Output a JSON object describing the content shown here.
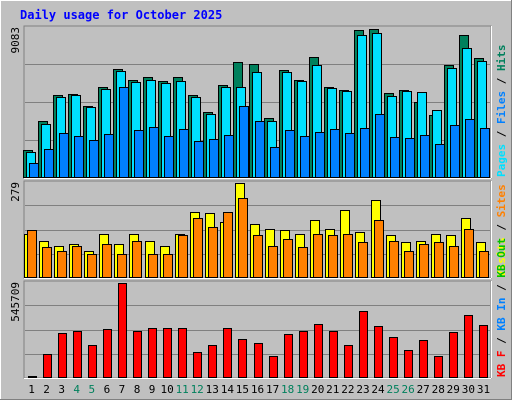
{
  "colors": {
    "background": "#c0c0c0",
    "title": "#0000ff",
    "grid": "#808080",
    "hits": "#00805c",
    "files": "#00e0ff",
    "pages": "#0080ff",
    "visits": "#ffff00",
    "sites": "#ff8000",
    "kb_in": "#ff0000",
    "weekend_label": "#00805c",
    "weekday_label": "#000000"
  },
  "chart_data": {
    "type": "bar",
    "title": "Daily usage for October 2025",
    "grid": true,
    "categories": [
      "1",
      "2",
      "3",
      "4",
      "5",
      "6",
      "7",
      "8",
      "9",
      "10",
      "11",
      "12",
      "13",
      "14",
      "15",
      "16",
      "17",
      "18",
      "19",
      "20",
      "21",
      "22",
      "23",
      "24",
      "25",
      "26",
      "27",
      "28",
      "29",
      "30",
      "31"
    ],
    "weekend_days": [
      "4",
      "5",
      "11",
      "12",
      "18",
      "19",
      "25",
      "26"
    ],
    "panels": [
      {
        "id": "traffic",
        "ymax_label": "9083",
        "ymax": 9083,
        "side_labels": [
          {
            "text": "Pages",
            "color": "#00e0ff"
          },
          {
            "text": " / ",
            "color": "#000000"
          },
          {
            "text": "Files",
            "color": "#0080ff"
          },
          {
            "text": " / ",
            "color": "#000000"
          },
          {
            "text": "Hits",
            "color": "#00805c"
          }
        ],
        "series": [
          {
            "name": "Hits",
            "color": "#00805c",
            "values": [
              1680,
              3460,
              5050,
              5080,
              4380,
              5520,
              6620,
              5920,
              6090,
              5860,
              6110,
              5020,
              4020,
              5630,
              7000,
              6900,
              3650,
              6550,
              5960,
              7350,
              5530,
              5350,
              8950,
              9000,
              5140,
              5340,
              4580,
              3800,
              6840,
              8650,
              7270
            ]
          },
          {
            "name": "Files",
            "color": "#00e0ff",
            "values": [
              1580,
              3300,
              4900,
              5050,
              4300,
              5400,
              6450,
              5800,
              5910,
              5750,
              5860,
              4880,
              3870,
              5500,
              5500,
              6400,
              3450,
              6400,
              5880,
              6850,
              5450,
              5250,
              8680,
              8750,
              4960,
              5250,
              5180,
              4130,
              6660,
              7900,
              7100
            ]
          },
          {
            "name": "Pages",
            "color": "#0080ff",
            "values": [
              900,
              1770,
              2700,
              2520,
              2290,
              2640,
              5500,
              2900,
              3100,
              2550,
              2950,
              2250,
              2380,
              2630,
              4380,
              3450,
              1850,
              2890,
              2520,
              2780,
              2970,
              2720,
              3050,
              3850,
              2480,
              2430,
              2580,
              2080,
              3220,
              3560,
              3030
            ]
          }
        ]
      },
      {
        "id": "visitors",
        "ymax_label": "279",
        "ymax": 279,
        "side_labels": [
          {
            "text": "Visits",
            "color": "#ffff00"
          },
          {
            "text": " / ",
            "color": "#000000"
          },
          {
            "text": "Sites",
            "color": "#ff8000"
          }
        ],
        "series": [
          {
            "name": "Visits",
            "color": "#ffff00",
            "values": [
              130,
              110,
              95,
              100,
              80,
              130,
              100,
              130,
              110,
              95,
              130,
              195,
              190,
              165,
              280,
              160,
              145,
              140,
              130,
              170,
              145,
              200,
              135,
              230,
              125,
              105,
              110,
              130,
              125,
              175,
              105
            ]
          },
          {
            "name": "Sites",
            "color": "#ff8000",
            "values": [
              140,
              90,
              80,
              95,
              70,
              100,
              70,
              110,
              70,
              70,
              125,
              175,
              150,
              195,
              235,
              125,
              95,
              115,
              90,
              130,
              125,
              130,
              105,
              170,
              110,
              80,
              100,
              105,
              95,
              145,
              80
            ]
          }
        ]
      },
      {
        "id": "kbytes",
        "ymax_label": "545709",
        "ymax": 545709,
        "side_labels": [
          {
            "text": "KB F",
            "color": "#ff0000"
          },
          {
            "text": " / ",
            "color": "#000000"
          },
          {
            "text": "KB In",
            "color": "#0080ff"
          },
          {
            "text": " / ",
            "color": "#000000"
          },
          {
            "text": "KB Out",
            "color": "#00c000"
          }
        ],
        "series": [
          {
            "name": "KB F",
            "color": "#ff0000",
            "values": [
              10000,
              140000,
              260000,
              270000,
              190000,
              280000,
              545709,
              270000,
              290000,
              290000,
              285000,
              150000,
              190000,
              285000,
              225000,
              200000,
              125000,
              255000,
              270000,
              310000,
              270000,
              190000,
              385000,
              300000,
              235000,
              160000,
              220000,
              125000,
              265000,
              360000,
              305000
            ]
          }
        ]
      }
    ]
  }
}
